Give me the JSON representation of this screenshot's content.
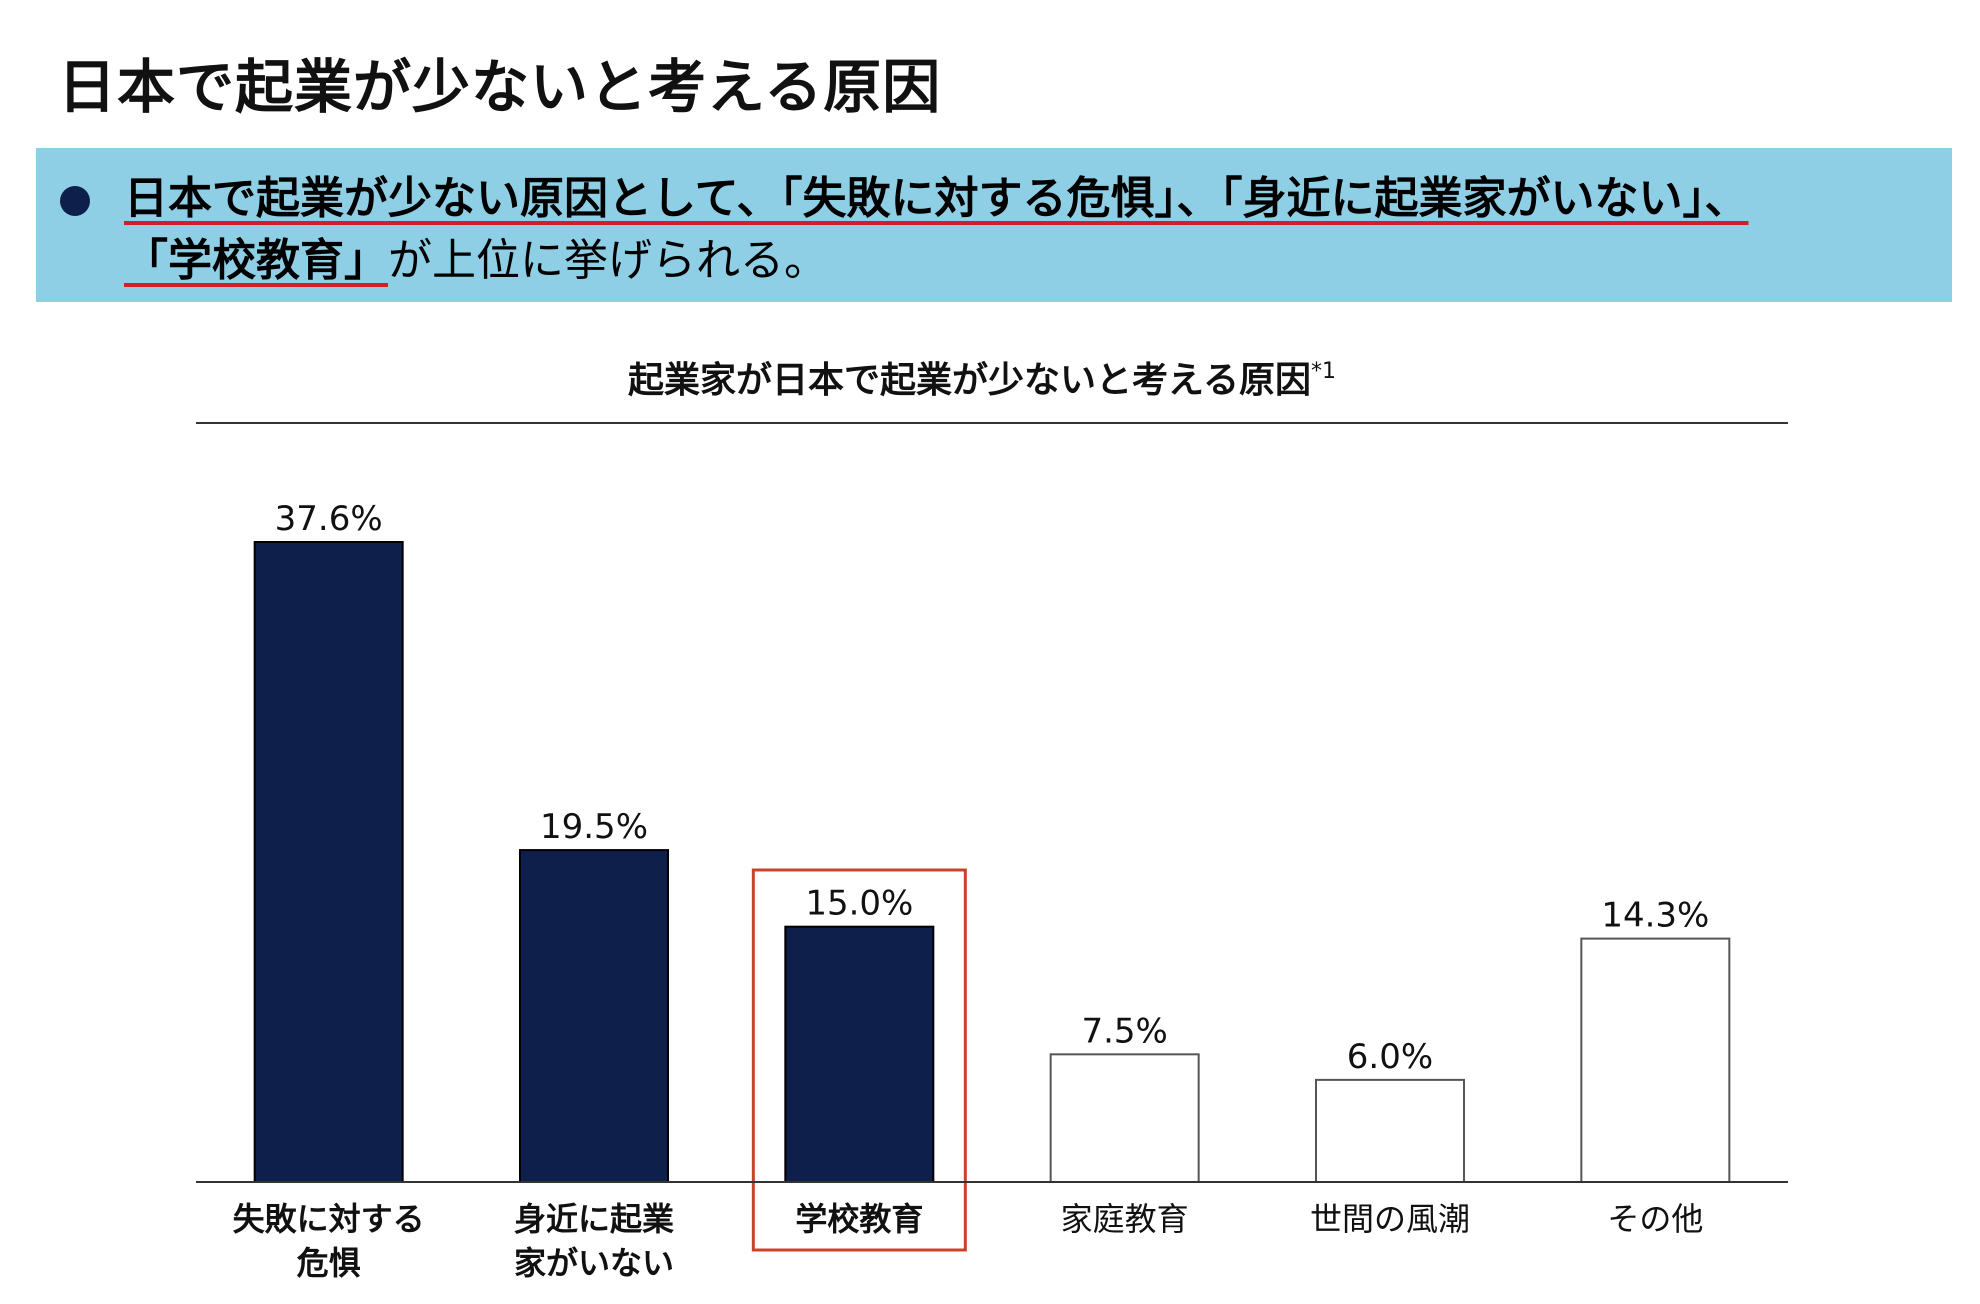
{
  "page": {
    "title": "日本で起業が少ないと考える原因"
  },
  "summary": {
    "highlight_line1": "日本で起業が少ない原因として、「失敗に対する危惧」、「身近に起業家がいない」、",
    "highlight_line2": "「学校教育」",
    "rest_line2": "が上位に挙げられる。"
  },
  "colors": {
    "band": "#8ecfe6",
    "bar_dark": "#0f1f4b",
    "bar_light": "#ffffff",
    "bar_outline": "#555555",
    "highlight_box": "#c8432a",
    "underline": "#d01f2a"
  },
  "chart_data": {
    "type": "bar",
    "title": "起業家が日本で起業が少ないと考える原因",
    "title_note": "*1",
    "categories": [
      [
        "失敗に対する",
        "危惧"
      ],
      [
        "身近に起業",
        "家がいない"
      ],
      [
        "学校教育"
      ],
      [
        "家庭教育"
      ],
      [
        "世間の風潮"
      ],
      [
        "その他"
      ]
    ],
    "values": [
      37.6,
      19.5,
      15.0,
      7.5,
      6.0,
      14.3
    ],
    "value_labels": [
      "37.6%",
      "19.5%",
      "15.0%",
      "7.5%",
      "6.0%",
      "14.3%"
    ],
    "filled": [
      true,
      true,
      true,
      false,
      false,
      false
    ],
    "emphasized_category": "学校教育",
    "ylim": [
      0,
      37.6
    ],
    "grid": false,
    "xlabel": "",
    "ylabel": ""
  }
}
